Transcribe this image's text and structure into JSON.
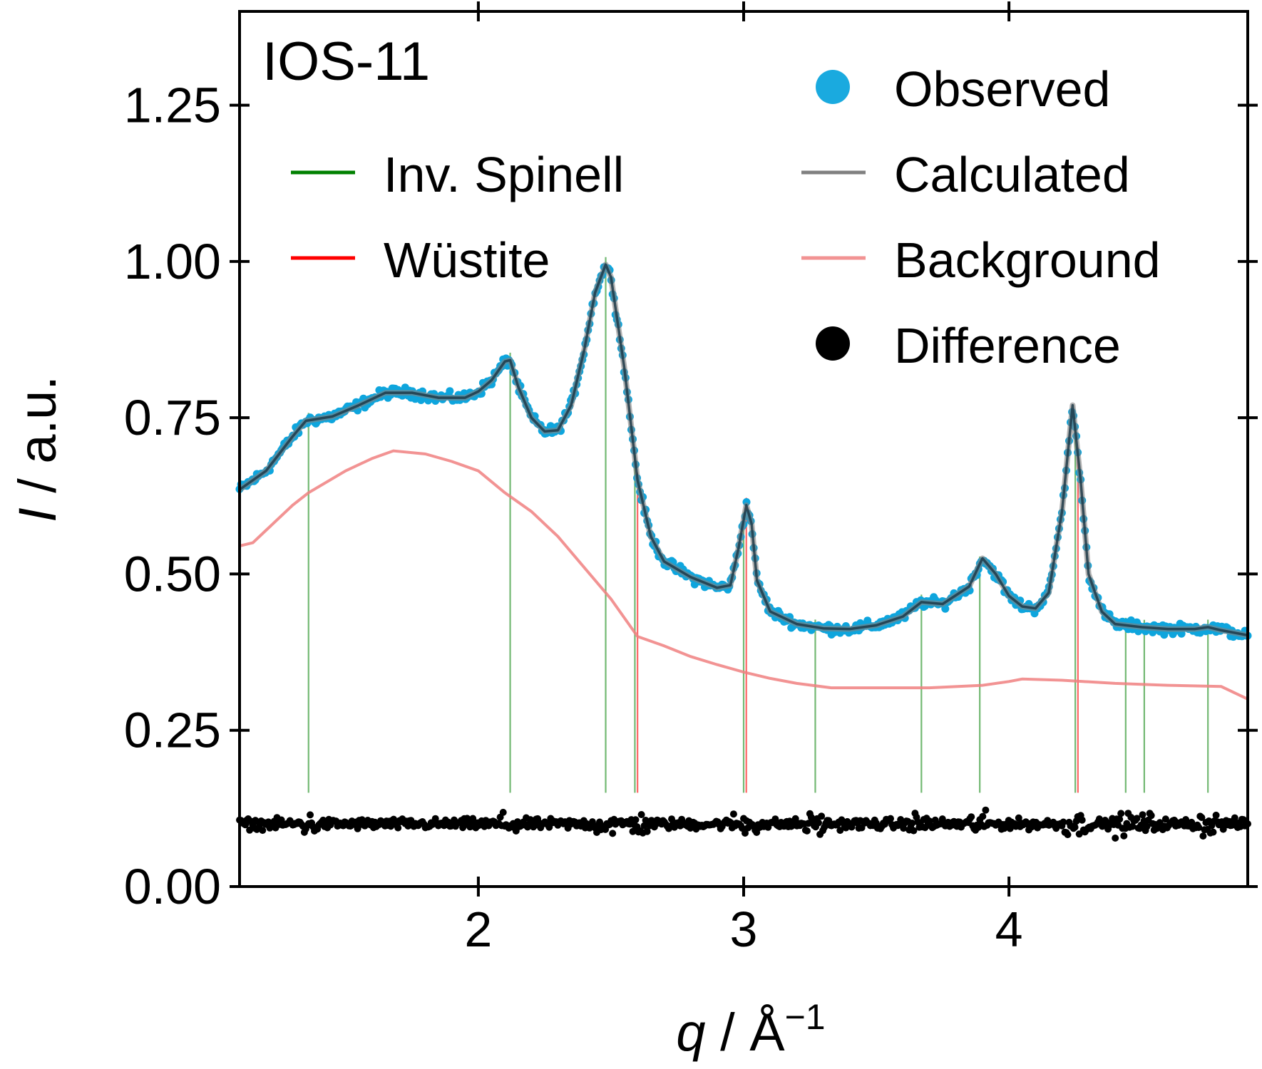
{
  "chart_data": {
    "type": "line",
    "panel_label": "IOS-11",
    "xlabel": {
      "var": "q",
      "sep": " / ",
      "unit": "Å",
      "exp": "−1"
    },
    "ylabel": {
      "var": "I",
      "sep": " / ",
      "unit": "a.u."
    },
    "xlim": [
      1.1,
      4.9
    ],
    "ylim": [
      0,
      1.4
    ],
    "x_ticks": [
      2,
      3,
      4
    ],
    "x_tick_labels": [
      "2",
      "3",
      "4"
    ],
    "y_ticks": [
      0,
      0.25,
      0.5,
      0.75,
      1.0,
      1.25
    ],
    "y_tick_labels": [
      "0.00",
      "0.25",
      "0.50",
      "0.75",
      "1.00",
      "1.25"
    ],
    "grid": false,
    "legend": {
      "placement": "top",
      "entries": [
        {
          "label": "Inv. Spinell",
          "marker": "line",
          "color": "#008000"
        },
        {
          "label": "Wüstite",
          "marker": "line",
          "color": "#ff0000"
        },
        {
          "label": "Observed",
          "marker": "dot",
          "color": "#0ea5dd"
        },
        {
          "label": "Calculated",
          "marker": "line",
          "color": "#808080"
        },
        {
          "label": "Background",
          "marker": "line",
          "color": "#f08080"
        },
        {
          "label": "Difference",
          "marker": "dot",
          "color": "#000000"
        }
      ]
    },
    "series": [
      {
        "name": "Calculated",
        "color": "#808080",
        "points": [
          [
            1.1,
            0.635
          ],
          [
            1.2,
            0.665
          ],
          [
            1.3,
            0.72
          ],
          [
            1.35,
            0.745
          ],
          [
            1.45,
            0.752
          ],
          [
            1.55,
            0.77
          ],
          [
            1.65,
            0.79
          ],
          [
            1.75,
            0.79
          ],
          [
            1.85,
            0.782
          ],
          [
            1.95,
            0.782
          ],
          [
            2.0,
            0.792
          ],
          [
            2.05,
            0.81
          ],
          [
            2.1,
            0.84
          ],
          [
            2.12,
            0.842
          ],
          [
            2.15,
            0.8
          ],
          [
            2.2,
            0.75
          ],
          [
            2.25,
            0.728
          ],
          [
            2.3,
            0.73
          ],
          [
            2.35,
            0.77
          ],
          [
            2.4,
            0.86
          ],
          [
            2.44,
            0.95
          ],
          [
            2.48,
            0.995
          ],
          [
            2.5,
            0.975
          ],
          [
            2.55,
            0.83
          ],
          [
            2.6,
            0.65
          ],
          [
            2.65,
            0.56
          ],
          [
            2.7,
            0.52
          ],
          [
            2.8,
            0.495
          ],
          [
            2.9,
            0.478
          ],
          [
            2.95,
            0.482
          ],
          [
            2.98,
            0.54
          ],
          [
            3.01,
            0.61
          ],
          [
            3.03,
            0.58
          ],
          [
            3.05,
            0.49
          ],
          [
            3.1,
            0.44
          ],
          [
            3.2,
            0.42
          ],
          [
            3.3,
            0.413
          ],
          [
            3.4,
            0.412
          ],
          [
            3.5,
            0.418
          ],
          [
            3.6,
            0.432
          ],
          [
            3.67,
            0.455
          ],
          [
            3.75,
            0.452
          ],
          [
            3.85,
            0.48
          ],
          [
            3.9,
            0.525
          ],
          [
            3.95,
            0.5
          ],
          [
            4.0,
            0.465
          ],
          [
            4.05,
            0.448
          ],
          [
            4.1,
            0.445
          ],
          [
            4.15,
            0.47
          ],
          [
            4.2,
            0.6
          ],
          [
            4.24,
            0.77
          ],
          [
            4.27,
            0.65
          ],
          [
            4.3,
            0.5
          ],
          [
            4.35,
            0.44
          ],
          [
            4.4,
            0.42
          ],
          [
            4.5,
            0.415
          ],
          [
            4.6,
            0.412
          ],
          [
            4.7,
            0.412
          ],
          [
            4.75,
            0.415
          ],
          [
            4.8,
            0.41
          ],
          [
            4.9,
            0.402
          ]
        ]
      },
      {
        "name": "Background",
        "color": "#f08080",
        "points": [
          [
            1.1,
            0.545
          ],
          [
            1.15,
            0.55
          ],
          [
            1.2,
            0.57
          ],
          [
            1.3,
            0.61
          ],
          [
            1.36,
            0.63
          ],
          [
            1.5,
            0.665
          ],
          [
            1.6,
            0.685
          ],
          [
            1.68,
            0.697
          ],
          [
            1.8,
            0.692
          ],
          [
            1.9,
            0.68
          ],
          [
            2.0,
            0.665
          ],
          [
            2.1,
            0.63
          ],
          [
            2.2,
            0.6
          ],
          [
            2.3,
            0.56
          ],
          [
            2.4,
            0.51
          ],
          [
            2.5,
            0.46
          ],
          [
            2.6,
            0.4
          ],
          [
            2.7,
            0.385
          ],
          [
            2.8,
            0.368
          ],
          [
            2.9,
            0.355
          ],
          [
            3.0,
            0.343
          ],
          [
            3.1,
            0.333
          ],
          [
            3.2,
            0.325
          ],
          [
            3.33,
            0.318
          ],
          [
            3.5,
            0.318
          ],
          [
            3.7,
            0.318
          ],
          [
            3.9,
            0.322
          ],
          [
            4.0,
            0.328
          ],
          [
            4.05,
            0.332
          ],
          [
            4.2,
            0.33
          ],
          [
            4.4,
            0.325
          ],
          [
            4.6,
            0.322
          ],
          [
            4.8,
            0.32
          ],
          [
            4.9,
            0.3
          ]
        ]
      }
    ],
    "observed_noise": 0.012,
    "difference": {
      "offset": 0.1,
      "noise": 0.012
    },
    "reflections": {
      "inv_spinell": [
        1.36,
        2.12,
        2.48,
        2.59,
        3.0,
        3.27,
        3.67,
        3.89,
        4.25,
        4.44,
        4.51,
        4.75
      ],
      "wustite": [
        2.6,
        3.01,
        4.26
      ]
    }
  }
}
